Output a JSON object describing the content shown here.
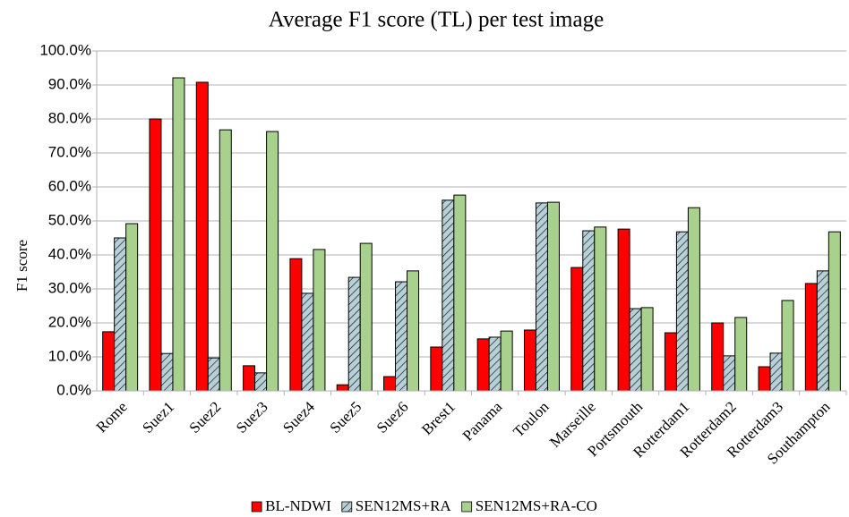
{
  "chart_data": {
    "type": "bar",
    "title": "Average F1 score (TL) per test image",
    "ylabel": "F1 score",
    "categories": [
      "Rome",
      "Suez1",
      "Suez2",
      "Suez3",
      "Suez4",
      "Suez5",
      "Suez6",
      "Brest1",
      "Panama",
      "Toulon",
      "Marseille",
      "Portsmouth",
      "Rotterdam1",
      "Rotterdam2",
      "Rotterdam3",
      "Southampton"
    ],
    "series": [
      {
        "name": "BL-NDWI",
        "color": "#ff0000",
        "values": [
          17.4,
          80.0,
          90.8,
          7.4,
          38.9,
          1.8,
          4.2,
          12.9,
          15.3,
          17.9,
          36.3,
          47.6,
          17.1,
          20.0,
          7.1,
          31.6
        ]
      },
      {
        "name": "SEN12MS+RA",
        "color": "#b7cfd6",
        "hatch": true,
        "values": [
          45.0,
          11.0,
          9.7,
          5.3,
          28.7,
          33.4,
          32.1,
          56.1,
          15.8,
          55.3,
          47.1,
          24.2,
          46.8,
          10.3,
          11.1,
          35.3
        ]
      },
      {
        "name": "SEN12MS+RA-CO",
        "color": "#a9d18e",
        "values": [
          49.2,
          92.1,
          76.8,
          76.3,
          41.6,
          43.4,
          35.3,
          57.6,
          17.6,
          55.5,
          48.2,
          24.5,
          53.9,
          21.6,
          26.6,
          46.8
        ]
      }
    ],
    "ylim": [
      0,
      100
    ],
    "yticks": [
      {
        "value": 0,
        "label": "0.0%"
      },
      {
        "value": 10,
        "label": "10.0%"
      },
      {
        "value": 20,
        "label": "20.0%"
      },
      {
        "value": 30,
        "label": "30.0%"
      },
      {
        "value": 40,
        "label": "40.0%"
      },
      {
        "value": 50,
        "label": "50.0%"
      },
      {
        "value": 60,
        "label": "60.0%"
      },
      {
        "value": 70,
        "label": "70.0%"
      },
      {
        "value": 80,
        "label": "80.0%"
      },
      {
        "value": 90,
        "label": "90.0%"
      },
      {
        "value": 100,
        "label": "100.0%"
      }
    ],
    "grid": true,
    "legend": "bottom"
  }
}
